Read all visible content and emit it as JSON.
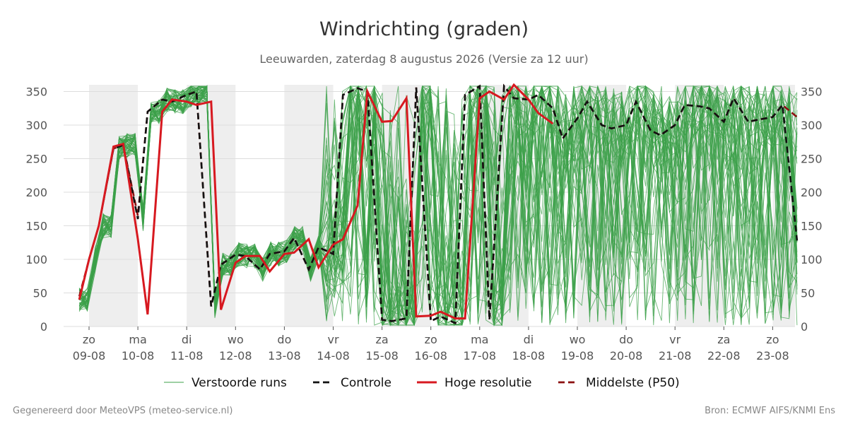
{
  "chart_data": {
    "type": "line",
    "title": "Windrichting (graden)",
    "subtitle": "Leeuwarden, zaterdag  8 augustus 2026 (Versie za 12 uur)",
    "ylim": [
      0,
      360
    ],
    "yticks": [
      0,
      50,
      100,
      150,
      200,
      250,
      300,
      350
    ],
    "xlim_days": [
      0,
      14.5
    ],
    "x_days": [
      {
        "day": "zo",
        "date": "09-08"
      },
      {
        "day": "ma",
        "date": "10-08"
      },
      {
        "day": "di",
        "date": "11-08"
      },
      {
        "day": "wo",
        "date": "12-08"
      },
      {
        "day": "do",
        "date": "13-08"
      },
      {
        "day": "vr",
        "date": "14-08"
      },
      {
        "day": "za",
        "date": "15-08"
      },
      {
        "day": "zo",
        "date": "16-08"
      },
      {
        "day": "ma",
        "date": "17-08"
      },
      {
        "day": "di",
        "date": "18-08"
      },
      {
        "day": "wo",
        "date": "19-08"
      },
      {
        "day": "do",
        "date": "20-08"
      },
      {
        "day": "vr",
        "date": "21-08"
      },
      {
        "day": "za",
        "date": "22-08"
      },
      {
        "day": "zo",
        "date": "23-08"
      }
    ],
    "grid": true,
    "legend_position": "bottom",
    "series": [
      {
        "name": "Controle",
        "color": "#111111",
        "style": "dashed",
        "x": [
          -0.2,
          0.0,
          0.2,
          0.5,
          0.7,
          1.0,
          1.2,
          1.5,
          1.7,
          2.0,
          2.2,
          2.5,
          2.7,
          3.0,
          3.2,
          3.5,
          3.7,
          4.0,
          4.2,
          4.5,
          4.7,
          5.0,
          5.2,
          5.5,
          5.7,
          6.0,
          6.2,
          6.5,
          6.7,
          7.0,
          7.2,
          7.5,
          7.7,
          8.0,
          8.2,
          8.5,
          8.7,
          9.0,
          9.2,
          9.5,
          9.7,
          10.0,
          10.2,
          10.5,
          10.7,
          11.0,
          11.2,
          11.5,
          11.7,
          12.0,
          12.2,
          12.5,
          12.7,
          13.0,
          13.2,
          13.5,
          13.7,
          14.0,
          14.2,
          14.5
        ],
        "values": [
          40,
          100,
          150,
          265,
          270,
          160,
          320,
          338,
          335,
          345,
          350,
          30,
          92,
          107,
          105,
          85,
          108,
          112,
          132,
          85,
          118,
          108,
          345,
          355,
          350,
          10,
          8,
          12,
          356,
          8,
          15,
          5,
          345,
          358,
          10,
          358,
          340,
          338,
          345,
          325,
          280,
          310,
          335,
          300,
          295,
          300,
          335,
          292,
          285,
          300,
          330,
          328,
          325,
          305,
          340,
          305,
          308,
          312,
          330,
          128
        ]
      },
      {
        "name": "Hoge resolutie",
        "color": "#d71920",
        "style": "solid",
        "x": [
          -0.2,
          0.0,
          0.2,
          0.5,
          0.7,
          1.0,
          1.2,
          1.5,
          1.7,
          2.0,
          2.2,
          2.5,
          2.7,
          3.0,
          3.2,
          3.5,
          3.7,
          4.0,
          4.2,
          4.5,
          4.7,
          5.0,
          5.2,
          5.5,
          5.7,
          6.0,
          6.2,
          6.5,
          6.7,
          7.0,
          7.2,
          7.5,
          7.7,
          8.0,
          8.2,
          8.5,
          8.7,
          9.0,
          9.2,
          9.5
        ],
        "values": [
          40,
          100,
          150,
          268,
          272,
          130,
          18,
          320,
          338,
          335,
          330,
          335,
          25,
          95,
          105,
          105,
          82,
          108,
          110,
          130,
          88,
          122,
          130,
          180,
          350,
          305,
          306,
          340,
          15,
          16,
          22,
          12,
          12,
          340,
          350,
          338,
          360,
          338,
          318,
          302
        ]
      },
      {
        "name": "Middelste (P50)",
        "color": "#8b1010",
        "style": "dashed",
        "x": [
          -0.2,
          0.0,
          0.2,
          0.5,
          0.7,
          1.0,
          1.2,
          1.5,
          1.7,
          2.0,
          2.2,
          2.5,
          2.7,
          3.0,
          3.2,
          3.5,
          3.7,
          4.0,
          4.2,
          4.5,
          4.7,
          5.0,
          5.2,
          5.5,
          5.7,
          6.0,
          6.2,
          6.5,
          6.7,
          7.0,
          7.2,
          7.5,
          7.7,
          8.0,
          8.2,
          8.5,
          8.7,
          9.0,
          9.2,
          9.5,
          9.7,
          10.0,
          10.2,
          10.5,
          10.7,
          11.0,
          11.2,
          11.5,
          11.7,
          12.0,
          12.2,
          12.5,
          12.7,
          13.0,
          13.2,
          13.5,
          13.7,
          14.0,
          14.2,
          14.5
        ],
        "values": [
          45,
          100,
          150,
          265,
          270,
          165,
          320,
          338,
          335,
          345,
          350,
          30,
          92,
          107,
          105,
          85,
          108,
          112,
          132,
          85,
          118,
          108,
          345,
          355,
          350,
          10,
          8,
          12,
          356,
          8,
          15,
          5,
          345,
          358,
          10,
          358,
          340,
          338,
          345,
          325,
          280,
          310,
          335,
          300,
          295,
          300,
          335,
          292,
          285,
          300,
          330,
          328,
          325,
          305,
          340,
          305,
          308,
          312,
          330,
          312
        ]
      }
    ],
    "legend": [
      {
        "label": "Verstoorde runs",
        "color": "#3ca04a",
        "style": "thin"
      },
      {
        "label": "Controle",
        "color": "#111111",
        "style": "dashed"
      },
      {
        "label": "Hoge resolutie",
        "color": "#d71920",
        "style": "solid"
      },
      {
        "label": "Middelste (P50)",
        "color": "#8b1010",
        "style": "dashed"
      }
    ]
  },
  "footer": {
    "left": "Gegenereerd door MeteoVPS (meteo-service.nl)",
    "right": "Bron: ECMWF AIFS/KNMI Ens"
  },
  "colors": {
    "ensemble": "#3ca04a",
    "night_shade": "#eeeeee",
    "grid": "#dddddd"
  }
}
